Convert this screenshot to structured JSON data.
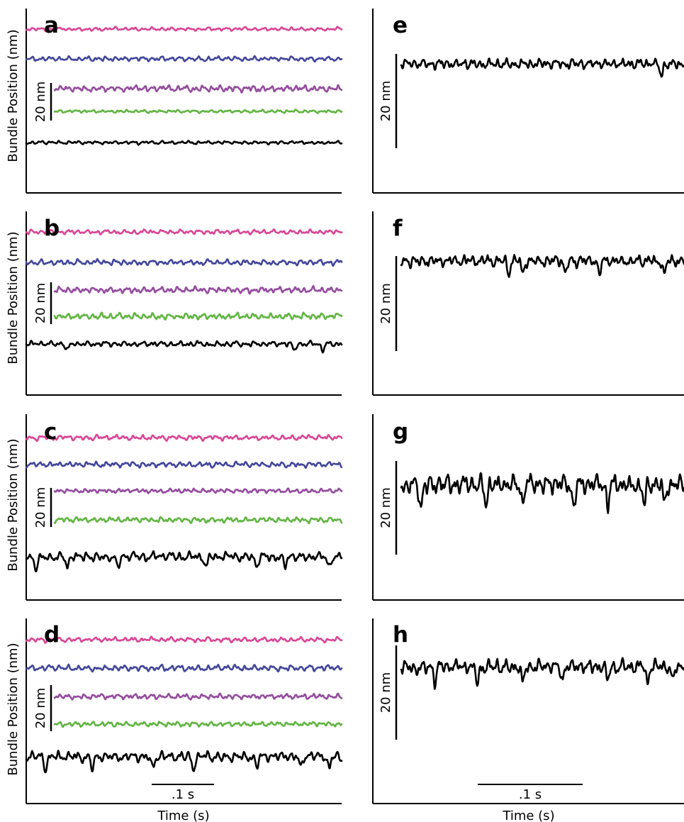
{
  "figure": {
    "ylabel": "Bundle Position (nm)",
    "xlabel": "Time (s)",
    "scalebar_y": "20 nm",
    "scalebar_x": ".1 s"
  },
  "colors": {
    "pink": "#d94696",
    "blue": "#43479b",
    "purple": "#954d9f",
    "green": "#63b544",
    "black": "#000000"
  },
  "chart_data": [
    {
      "type": "line",
      "panel": "a",
      "y_scalebar_nm": 20,
      "series": [
        {
          "color": "pink",
          "amp": 1.8,
          "spikes": []
        },
        {
          "color": "blue",
          "amp": 2.5,
          "spikes": []
        },
        {
          "color": "purple",
          "amp": 3.2,
          "spikes": []
        },
        {
          "color": "green",
          "amp": 1.5,
          "spikes": []
        },
        {
          "color": "black",
          "amp": 1.7,
          "spikes": []
        }
      ]
    },
    {
      "type": "line",
      "panel": "b",
      "y_scalebar_nm": 20,
      "series": [
        {
          "color": "pink",
          "amp": 2.1,
          "spikes": []
        },
        {
          "color": "blue",
          "amp": 2.6,
          "spikes": []
        },
        {
          "color": "purple",
          "amp": 2.8,
          "spikes": []
        },
        {
          "color": "green",
          "amp": 2.9,
          "spikes": []
        },
        {
          "color": "black",
          "amp": 2.6,
          "spikes": [
            0.13,
            0.85,
            0.94
          ]
        }
      ]
    },
    {
      "type": "line",
      "panel": "c",
      "y_scalebar_nm": 20,
      "series": [
        {
          "color": "pink",
          "amp": 2.6,
          "spikes": []
        },
        {
          "color": "blue",
          "amp": 2.8,
          "spikes": []
        },
        {
          "color": "purple",
          "amp": 2.2,
          "spikes": []
        },
        {
          "color": "green",
          "amp": 2.6,
          "spikes": []
        },
        {
          "color": "black",
          "amp": 4.6,
          "spikes": [
            0.03,
            0.13,
            0.29,
            0.57,
            0.73,
            0.82,
            0.96
          ]
        }
      ]
    },
    {
      "type": "line",
      "panel": "d",
      "y_scalebar_nm": 20,
      "series": [
        {
          "color": "pink",
          "amp": 2.0,
          "spikes": []
        },
        {
          "color": "blue",
          "amp": 2.6,
          "spikes": []
        },
        {
          "color": "purple",
          "amp": 2.2,
          "spikes": []
        },
        {
          "color": "green",
          "amp": 2.0,
          "spikes": []
        },
        {
          "color": "black",
          "amp": 4.4,
          "spikes": [
            0.06,
            0.21,
            0.4,
            0.53,
            0.73,
            0.87,
            0.96
          ]
        }
      ]
    },
    {
      "type": "line",
      "panel": "e",
      "y_scalebar_nm": 20,
      "series": [
        {
          "color": "black",
          "amp": 2.1,
          "spikes": [
            0.92
          ]
        }
      ]
    },
    {
      "type": "line",
      "panel": "f",
      "y_scalebar_nm": 20,
      "series": [
        {
          "color": "black",
          "amp": 2.4,
          "spikes": [
            0.38,
            0.43,
            0.58,
            0.7,
            0.93
          ]
        }
      ]
    },
    {
      "type": "line",
      "panel": "g",
      "y_scalebar_nm": 20,
      "series": [
        {
          "color": "black",
          "amp": 4.1,
          "spikes": [
            0.07,
            0.3,
            0.43,
            0.61,
            0.73,
            0.86,
            0.93
          ]
        }
      ]
    },
    {
      "type": "line",
      "panel": "h",
      "y_scalebar_nm": 20,
      "series": [
        {
          "color": "black",
          "amp": 2.8,
          "spikes": [
            0.12,
            0.27,
            0.43,
            0.57,
            0.73,
            0.87,
            0.96
          ]
        }
      ]
    }
  ]
}
